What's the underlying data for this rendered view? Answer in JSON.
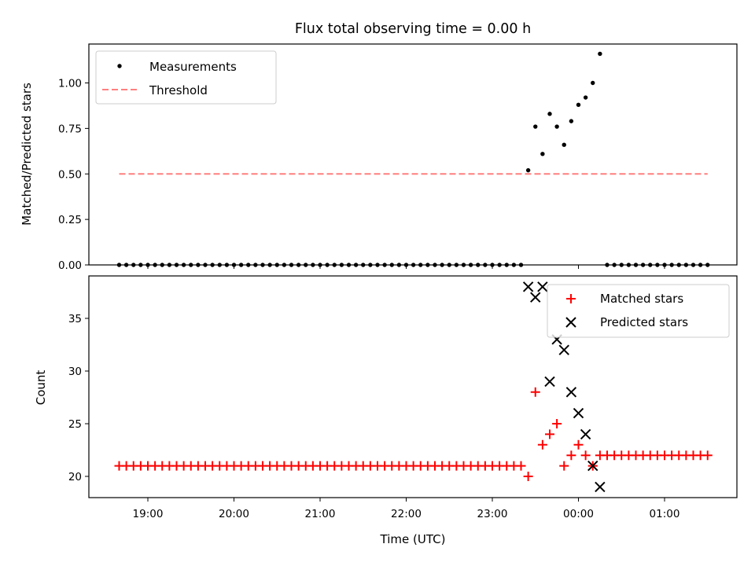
{
  "chart_data": [
    {
      "type": "scatter",
      "title": "Flux total observing time = 0.00 h",
      "xlabel": "",
      "ylabel": "Matched/Predicted stars",
      "ylim": [
        0,
        1.22
      ],
      "yticks": [
        "0.00",
        "0.25",
        "0.50",
        "0.75",
        "1.00"
      ],
      "xticks": [
        "19:00",
        "20:00",
        "21:00",
        "22:00",
        "23:00",
        "00:00",
        "01:00"
      ],
      "legend": "upper-left",
      "series": [
        {
          "name": "Measurements",
          "marker": "dot",
          "color": "#000000",
          "points": [
            [
              "18:40",
              0
            ],
            [
              "18:45",
              0
            ],
            [
              "18:50",
              0
            ],
            [
              "18:55",
              0
            ],
            [
              "19:00",
              0
            ],
            [
              "19:05",
              0
            ],
            [
              "19:10",
              0
            ],
            [
              "19:15",
              0
            ],
            [
              "19:20",
              0
            ],
            [
              "19:25",
              0
            ],
            [
              "19:30",
              0
            ],
            [
              "19:35",
              0
            ],
            [
              "19:40",
              0
            ],
            [
              "19:45",
              0
            ],
            [
              "19:50",
              0
            ],
            [
              "19:55",
              0
            ],
            [
              "20:00",
              0
            ],
            [
              "20:05",
              0
            ],
            [
              "20:10",
              0
            ],
            [
              "20:15",
              0
            ],
            [
              "20:20",
              0
            ],
            [
              "20:25",
              0
            ],
            [
              "20:30",
              0
            ],
            [
              "20:35",
              0
            ],
            [
              "20:40",
              0
            ],
            [
              "20:45",
              0
            ],
            [
              "20:50",
              0
            ],
            [
              "20:55",
              0
            ],
            [
              "21:00",
              0
            ],
            [
              "21:05",
              0
            ],
            [
              "21:10",
              0
            ],
            [
              "21:15",
              0
            ],
            [
              "21:20",
              0
            ],
            [
              "21:25",
              0
            ],
            [
              "21:30",
              0
            ],
            [
              "21:35",
              0
            ],
            [
              "21:40",
              0
            ],
            [
              "21:45",
              0
            ],
            [
              "21:50",
              0
            ],
            [
              "21:55",
              0
            ],
            [
              "22:00",
              0
            ],
            [
              "22:05",
              0
            ],
            [
              "22:10",
              0
            ],
            [
              "22:15",
              0
            ],
            [
              "22:20",
              0
            ],
            [
              "22:25",
              0
            ],
            [
              "22:30",
              0
            ],
            [
              "22:35",
              0
            ],
            [
              "22:40",
              0
            ],
            [
              "22:45",
              0
            ],
            [
              "22:50",
              0
            ],
            [
              "22:55",
              0
            ],
            [
              "23:00",
              0
            ],
            [
              "23:05",
              0
            ],
            [
              "23:10",
              0
            ],
            [
              "23:15",
              0
            ],
            [
              "23:20",
              0
            ],
            [
              "23:25",
              0.52
            ],
            [
              "23:30",
              0.76
            ],
            [
              "23:35",
              0.61
            ],
            [
              "23:40",
              0.83
            ],
            [
              "23:45",
              0.76
            ],
            [
              "23:50",
              0.66
            ],
            [
              "23:55",
              0.79
            ],
            [
              "00:00",
              0.88
            ],
            [
              "00:05",
              0.92
            ],
            [
              "00:10",
              1.0
            ],
            [
              "00:15",
              1.16
            ],
            [
              "00:20",
              0
            ],
            [
              "00:25",
              0
            ],
            [
              "00:30",
              0
            ],
            [
              "00:35",
              0
            ],
            [
              "00:40",
              0
            ],
            [
              "00:45",
              0
            ],
            [
              "00:50",
              0
            ],
            [
              "00:55",
              0
            ],
            [
              "01:00",
              0
            ],
            [
              "01:05",
              0
            ],
            [
              "01:10",
              0
            ],
            [
              "01:15",
              0
            ],
            [
              "01:20",
              0
            ],
            [
              "01:25",
              0
            ],
            [
              "01:30",
              0
            ]
          ]
        },
        {
          "name": "Threshold",
          "marker": "dashed-line",
          "color": "#ff7f7f",
          "points": [
            [
              "18:40",
              0.5
            ],
            [
              "01:30",
              0.5
            ]
          ]
        }
      ]
    },
    {
      "type": "scatter",
      "title": "",
      "xlabel": "Time (UTC)",
      "ylabel": "Count",
      "ylim": [
        18,
        39
      ],
      "yticks": [
        "20",
        "25",
        "30",
        "35"
      ],
      "xticks": [
        "19:00",
        "20:00",
        "21:00",
        "22:00",
        "23:00",
        "00:00",
        "01:00"
      ],
      "legend": "upper-right",
      "series": [
        {
          "name": "Matched stars",
          "marker": "plus",
          "color": "#ff0000",
          "points": [
            [
              "18:40",
              21
            ],
            [
              "18:45",
              21
            ],
            [
              "18:50",
              21
            ],
            [
              "18:55",
              21
            ],
            [
              "19:00",
              21
            ],
            [
              "19:05",
              21
            ],
            [
              "19:10",
              21
            ],
            [
              "19:15",
              21
            ],
            [
              "19:20",
              21
            ],
            [
              "19:25",
              21
            ],
            [
              "19:30",
              21
            ],
            [
              "19:35",
              21
            ],
            [
              "19:40",
              21
            ],
            [
              "19:45",
              21
            ],
            [
              "19:50",
              21
            ],
            [
              "19:55",
              21
            ],
            [
              "20:00",
              21
            ],
            [
              "20:05",
              21
            ],
            [
              "20:10",
              21
            ],
            [
              "20:15",
              21
            ],
            [
              "20:20",
              21
            ],
            [
              "20:25",
              21
            ],
            [
              "20:30",
              21
            ],
            [
              "20:35",
              21
            ],
            [
              "20:40",
              21
            ],
            [
              "20:45",
              21
            ],
            [
              "20:50",
              21
            ],
            [
              "20:55",
              21
            ],
            [
              "21:00",
              21
            ],
            [
              "21:05",
              21
            ],
            [
              "21:10",
              21
            ],
            [
              "21:15",
              21
            ],
            [
              "21:20",
              21
            ],
            [
              "21:25",
              21
            ],
            [
              "21:30",
              21
            ],
            [
              "21:35",
              21
            ],
            [
              "21:40",
              21
            ],
            [
              "21:45",
              21
            ],
            [
              "21:50",
              21
            ],
            [
              "21:55",
              21
            ],
            [
              "22:00",
              21
            ],
            [
              "22:05",
              21
            ],
            [
              "22:10",
              21
            ],
            [
              "22:15",
              21
            ],
            [
              "22:20",
              21
            ],
            [
              "22:25",
              21
            ],
            [
              "22:30",
              21
            ],
            [
              "22:35",
              21
            ],
            [
              "22:40",
              21
            ],
            [
              "22:45",
              21
            ],
            [
              "22:50",
              21
            ],
            [
              "22:55",
              21
            ],
            [
              "23:00",
              21
            ],
            [
              "23:05",
              21
            ],
            [
              "23:10",
              21
            ],
            [
              "23:15",
              21
            ],
            [
              "23:20",
              21
            ],
            [
              "23:25",
              20
            ],
            [
              "23:30",
              28
            ],
            [
              "23:35",
              23
            ],
            [
              "23:40",
              24
            ],
            [
              "23:45",
              25
            ],
            [
              "23:50",
              21
            ],
            [
              "23:55",
              22
            ],
            [
              "00:00",
              23
            ],
            [
              "00:05",
              22
            ],
            [
              "00:10",
              21
            ],
            [
              "00:15",
              22
            ],
            [
              "00:20",
              22
            ],
            [
              "00:25",
              22
            ],
            [
              "00:30",
              22
            ],
            [
              "00:35",
              22
            ],
            [
              "00:40",
              22
            ],
            [
              "00:45",
              22
            ],
            [
              "00:50",
              22
            ],
            [
              "00:55",
              22
            ],
            [
              "01:00",
              22
            ],
            [
              "01:05",
              22
            ],
            [
              "01:10",
              22
            ],
            [
              "01:15",
              22
            ],
            [
              "01:20",
              22
            ],
            [
              "01:25",
              22
            ],
            [
              "01:30",
              22
            ]
          ]
        },
        {
          "name": "Predicted stars",
          "marker": "x",
          "color": "#000000",
          "points": [
            [
              "23:25",
              38
            ],
            [
              "23:30",
              37
            ],
            [
              "23:35",
              38
            ],
            [
              "23:40",
              29
            ],
            [
              "23:45",
              33
            ],
            [
              "23:50",
              32
            ],
            [
              "23:55",
              28
            ],
            [
              "00:00",
              26
            ],
            [
              "00:05",
              24
            ],
            [
              "00:10",
              21
            ],
            [
              "00:15",
              19
            ]
          ]
        }
      ]
    }
  ]
}
